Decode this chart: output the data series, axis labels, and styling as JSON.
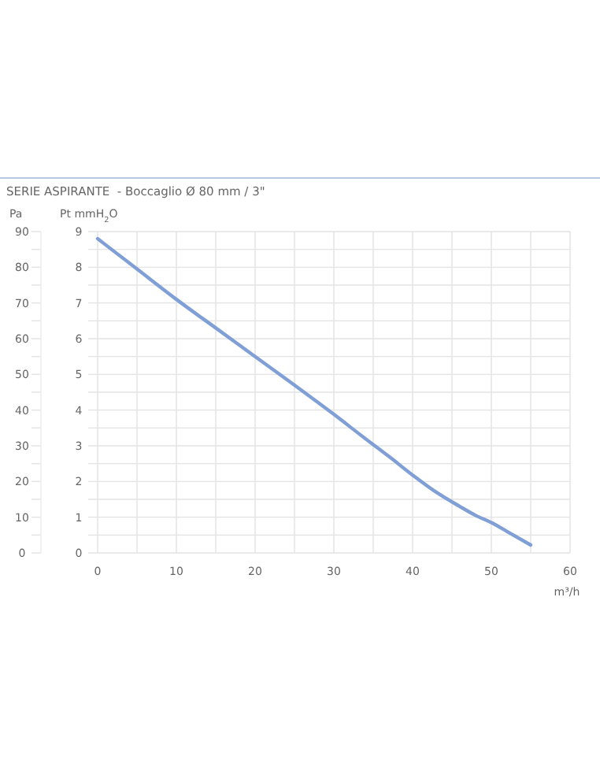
{
  "chart_data": {
    "type": "line",
    "title": "SERIE ASPIRANTE  - Boccaglio Ø 80 mm / 3\"",
    "xlabel": "m³/h",
    "ylabel": "Pt mmH$_{2}$O",
    "y2label": "Pa",
    "x": [
      0,
      5,
      10,
      15,
      20,
      25,
      30,
      34,
      37,
      40,
      43,
      46,
      48,
      50,
      52,
      55
    ],
    "series": [
      {
        "color": "#7f9fd6",
        "values": [
          8.8,
          7.95,
          7.1,
          6.3,
          5.5,
          4.7,
          3.88,
          3.2,
          2.7,
          2.18,
          1.7,
          1.3,
          1.05,
          0.85,
          0.6,
          0.22
        ]
      }
    ],
    "xlim": [
      0,
      60
    ],
    "xticks": [
      0,
      10,
      20,
      30,
      40,
      50,
      60
    ],
    "ylim": [
      0,
      9
    ],
    "yticks": [
      0,
      1,
      2,
      3,
      4,
      5,
      6,
      7,
      8,
      9
    ],
    "y2lim": [
      0,
      90
    ],
    "y2ticks": [
      0,
      10,
      20,
      30,
      40,
      50,
      60,
      70,
      80,
      90
    ],
    "grid": true,
    "marker": "none",
    "line_style": "solid"
  }
}
